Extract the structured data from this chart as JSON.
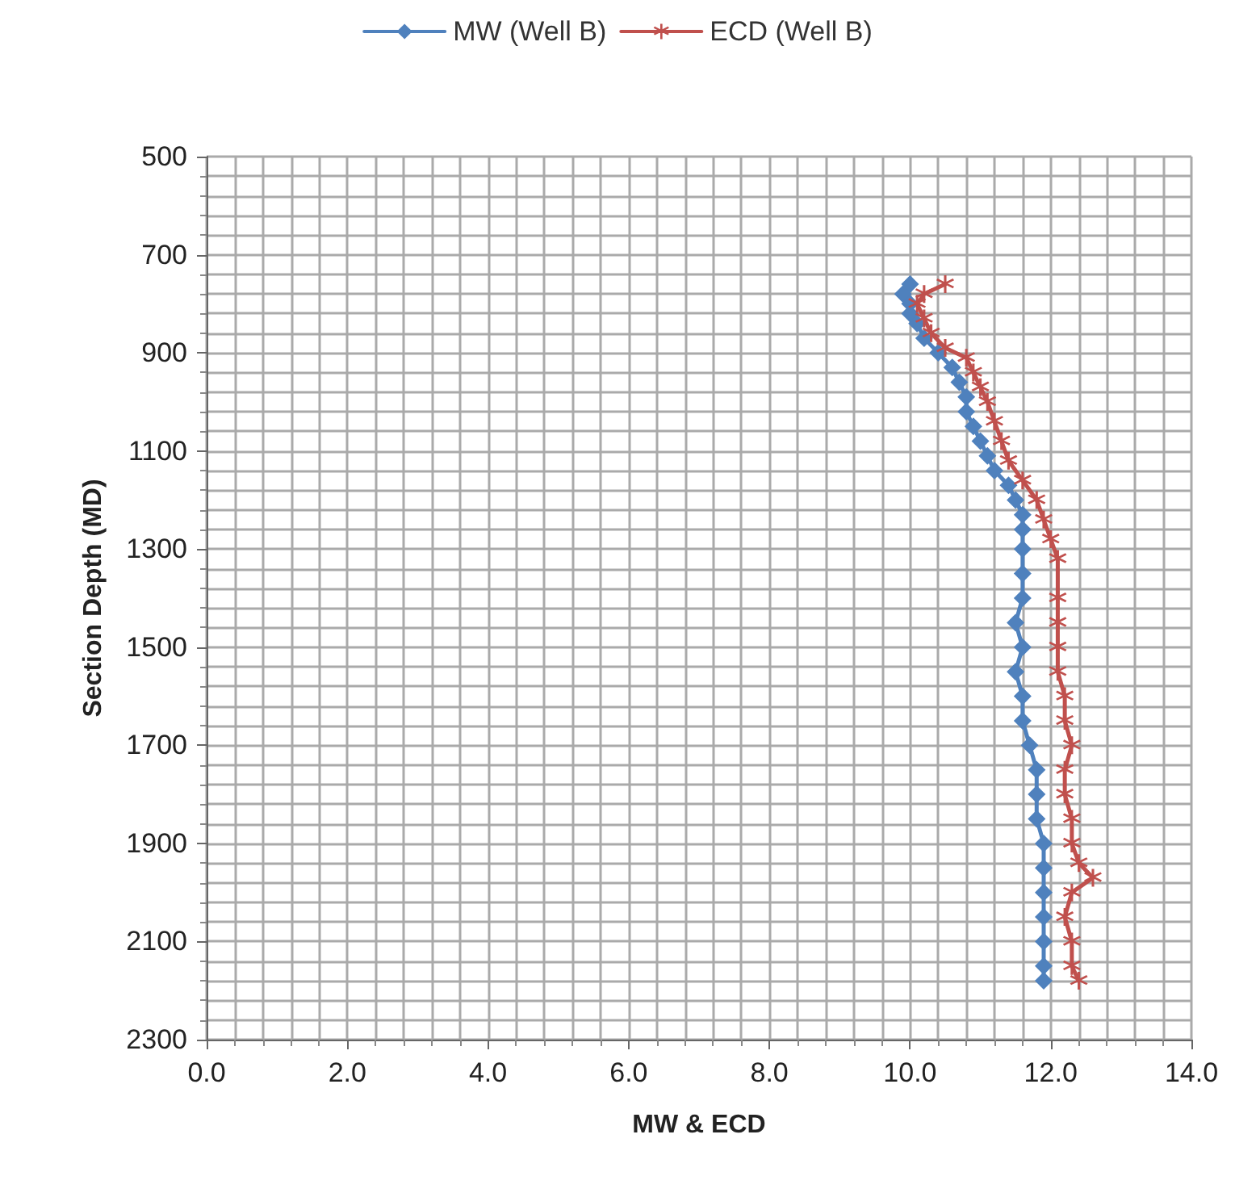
{
  "chart_data": {
    "type": "line",
    "xlabel": "MW & ECD",
    "ylabel": "Section Depth (MD)",
    "xlim": [
      0,
      14
    ],
    "xticks": [
      {
        "value": 0,
        "label": "0.0"
      },
      {
        "value": 2,
        "label": "2.0"
      },
      {
        "value": 4,
        "label": "4.0"
      },
      {
        "value": 6,
        "label": "6.0"
      },
      {
        "value": 8,
        "label": "8.0"
      },
      {
        "value": 10,
        "label": "10.0"
      },
      {
        "value": 12,
        "label": "12.0"
      },
      {
        "value": 14,
        "label": "14.0"
      }
    ],
    "ylim": [
      2300,
      500
    ],
    "yticks": [
      500,
      700,
      900,
      1100,
      1300,
      1500,
      1700,
      1900,
      2100,
      2300
    ],
    "grid": true,
    "legend": "top",
    "line_style": "solid",
    "series": [
      {
        "name": "MW (Well B)",
        "color": "#4f81bd",
        "marker": "diamond",
        "x": [
          10.0,
          9.9,
          10.0,
          10.0,
          10.1,
          10.2,
          10.4,
          10.6,
          10.7,
          10.8,
          10.8,
          10.9,
          11.0,
          11.1,
          11.2,
          11.4,
          11.5,
          11.6,
          11.6,
          11.6,
          11.6,
          11.6,
          11.5,
          11.6,
          11.5,
          11.6,
          11.6,
          11.7,
          11.8,
          11.8,
          11.8,
          11.9,
          11.9,
          11.9,
          11.9,
          11.9,
          11.9,
          11.9
        ],
        "values": [
          760,
          780,
          800,
          820,
          840,
          870,
          900,
          930,
          960,
          990,
          1020,
          1050,
          1080,
          1110,
          1140,
          1170,
          1200,
          1230,
          1260,
          1300,
          1350,
          1400,
          1450,
          1500,
          1550,
          1600,
          1650,
          1700,
          1750,
          1800,
          1850,
          1900,
          1950,
          2000,
          2050,
          2100,
          2150,
          2180
        ]
      },
      {
        "name": "ECD (Well B)",
        "color": "#c0504d",
        "marker": "star",
        "x": [
          10.5,
          10.2,
          10.1,
          10.2,
          10.3,
          10.5,
          10.8,
          10.9,
          11.0,
          11.1,
          11.2,
          11.3,
          11.4,
          11.6,
          11.8,
          11.9,
          12.0,
          12.1,
          12.1,
          12.1,
          12.1,
          12.1,
          12.2,
          12.2,
          12.3,
          12.2,
          12.2,
          12.3,
          12.3,
          12.4,
          12.6,
          12.3,
          12.2,
          12.3,
          12.3,
          12.4
        ],
        "values": [
          760,
          780,
          800,
          830,
          860,
          890,
          910,
          940,
          970,
          1000,
          1040,
          1080,
          1120,
          1160,
          1200,
          1240,
          1280,
          1320,
          1400,
          1450,
          1500,
          1550,
          1600,
          1650,
          1700,
          1750,
          1800,
          1850,
          1900,
          1940,
          1970,
          2000,
          2050,
          2100,
          2150,
          2180
        ]
      }
    ]
  }
}
